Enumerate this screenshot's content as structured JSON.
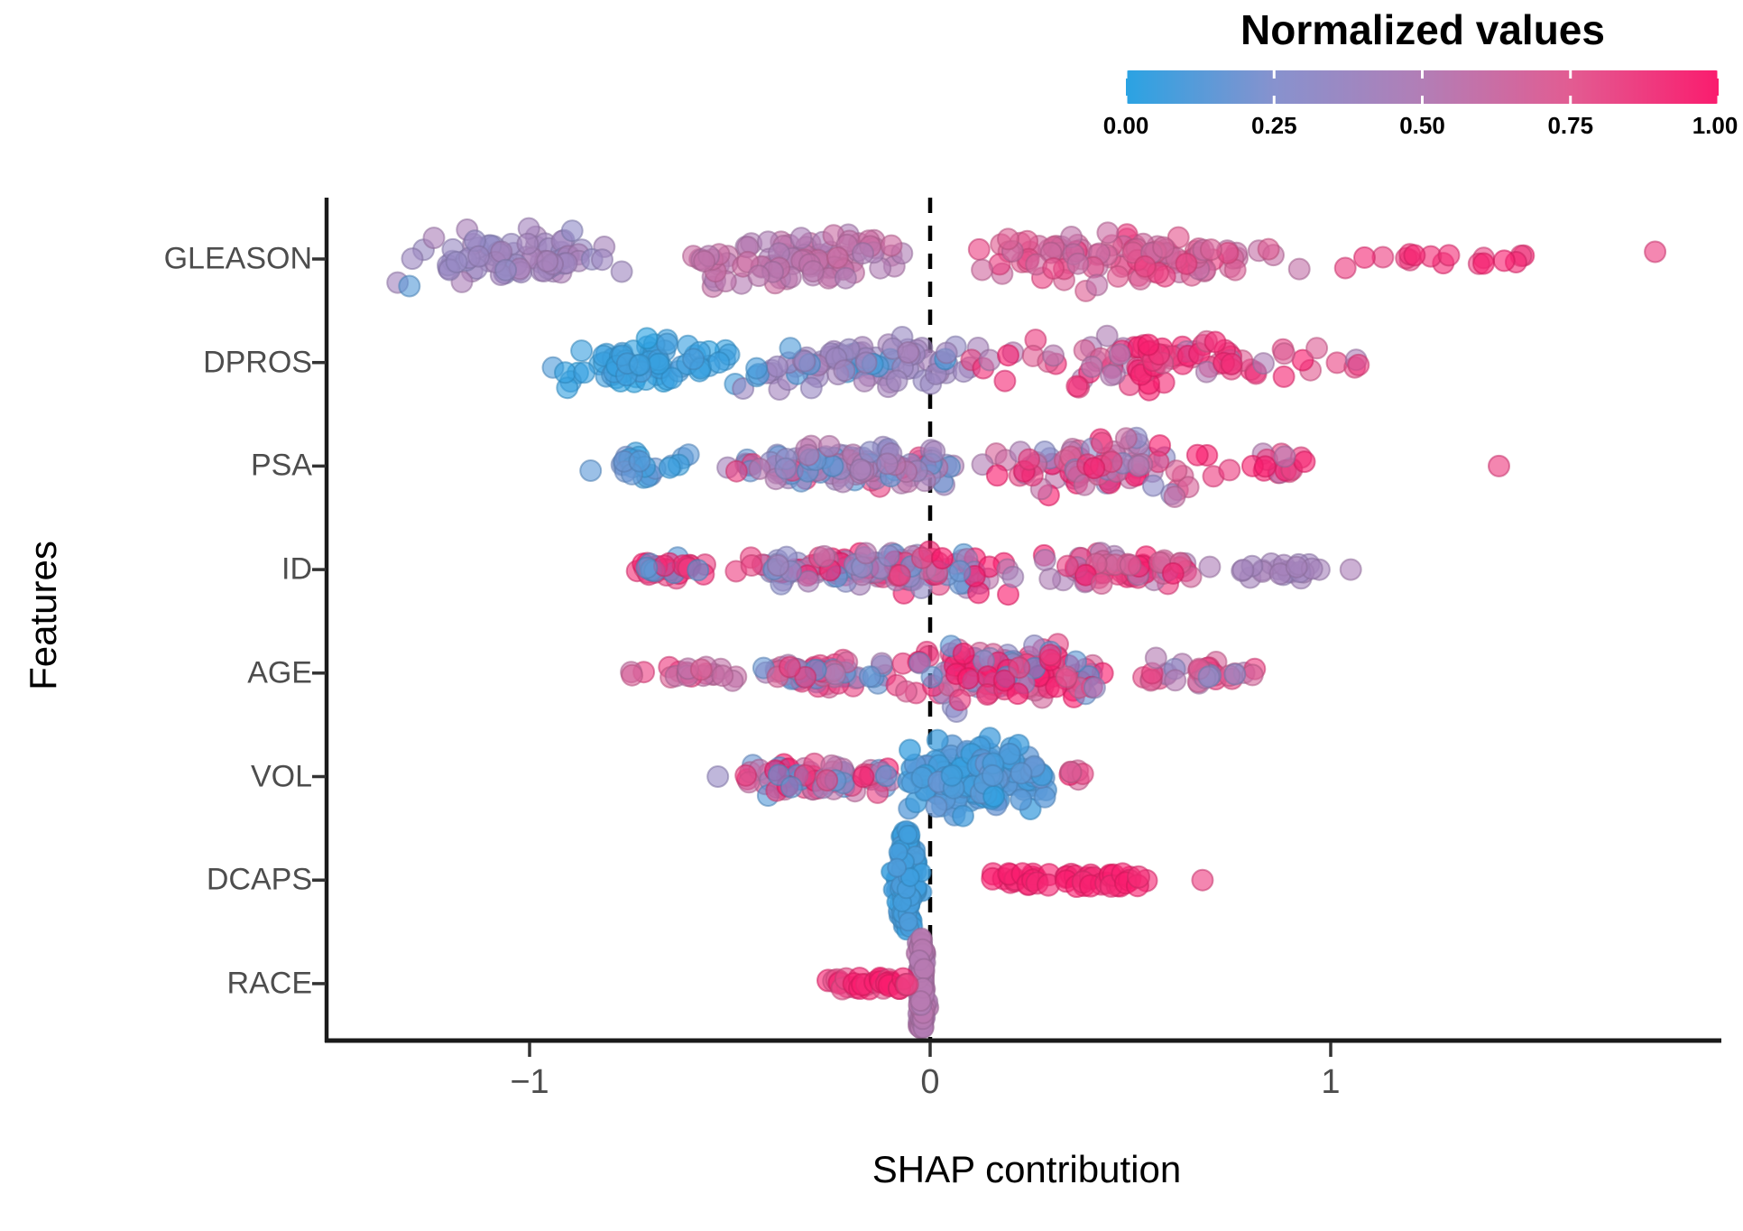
{
  "chart_data": {
    "type": "scatter",
    "variant": "shap-beeswarm",
    "xlabel": "SHAP contribution",
    "ylabel": "Features",
    "x_ticks": [
      -1,
      0,
      1
    ],
    "x_range": [
      -1.51,
      1.97
    ],
    "zero_reference_line": 0,
    "grid": "off",
    "features": [
      "GLEASON",
      "DPROS",
      "PSA",
      "ID",
      "AGE",
      "VOL",
      "DCAPS",
      "RACE"
    ],
    "legend": {
      "title": "Normalized values",
      "ticks": [
        "0.00",
        "0.25",
        "0.50",
        "0.75",
        "1.00"
      ],
      "tick_values": [
        0,
        0.25,
        0.5,
        0.75,
        1
      ],
      "position": "top-right"
    },
    "color_scale": {
      "stops": [
        {
          "t": 0.0,
          "color": "#2AA3E3"
        },
        {
          "t": 0.25,
          "color": "#8792CE"
        },
        {
          "t": 0.5,
          "color": "#B27EB6"
        },
        {
          "t": 0.75,
          "color": "#E25C92"
        },
        {
          "t": 1.0,
          "color": "#FA1C6E"
        }
      ]
    },
    "distributions": [
      {
        "feature": "GLEASON",
        "clusters": [
          {
            "x0": -1.36,
            "x1": -0.78,
            "n": 78,
            "v": [
              0.33,
              0.4,
              0.45,
              0.36
            ],
            "hh": 48,
            "shape": "blob"
          },
          {
            "x0": -1.31,
            "x1": -1.29,
            "n": 1,
            "v": [
              0.12
            ],
            "hh": 5,
            "shape": "lone",
            "yoff": 30
          },
          {
            "x0": -0.78,
            "x1": -0.76,
            "n": 1,
            "v": [
              0.42
            ],
            "hh": 5,
            "shape": "lone",
            "yoff": 14
          },
          {
            "x0": -0.64,
            "x1": -0.02,
            "n": 95,
            "v": [
              0.5,
              0.55,
              0.58,
              0.62
            ],
            "hh": 52,
            "shape": "blob"
          },
          {
            "x0": 0.08,
            "x1": 0.95,
            "n": 115,
            "v": [
              0.6,
              0.65,
              0.7,
              0.75,
              0.85
            ],
            "hh": 55,
            "shape": "blob"
          },
          {
            "x0": 0.95,
            "x1": 1.6,
            "n": 17,
            "v": [
              0.85,
              0.95,
              1.0
            ],
            "hh": 26,
            "shape": "blob"
          },
          {
            "x0": 1.8,
            "x1": 1.82,
            "n": 1,
            "v": [
              0.85
            ],
            "hh": 5,
            "shape": "lone",
            "yoff": -8
          }
        ]
      },
      {
        "feature": "DPROS",
        "clusters": [
          {
            "x0": -0.98,
            "x1": -0.45,
            "n": 72,
            "v": [
              0.02,
              0.05,
              0.08
            ],
            "hh": 46,
            "shape": "blob"
          },
          {
            "x0": -0.52,
            "x1": 0.2,
            "n": 92,
            "v": [
              0.35,
              0.4,
              0.45,
              0.38,
              0.08
            ],
            "hh": 52,
            "shape": "blob"
          },
          {
            "x0": 0.05,
            "x1": 1.0,
            "n": 92,
            "v": [
              0.72,
              0.85,
              1.0,
              0.95,
              0.5
            ],
            "hh": 48,
            "shape": "blob"
          },
          {
            "x0": 1.0,
            "x1": 1.1,
            "n": 4,
            "v": [
              0.5,
              0.85
            ],
            "hh": 18,
            "shape": "blob"
          }
        ]
      },
      {
        "feature": "PSA",
        "clusters": [
          {
            "x0": -0.88,
            "x1": -0.55,
            "n": 26,
            "v": [
              0.05,
              0.15,
              0.2
            ],
            "hh": 28,
            "shape": "blob"
          },
          {
            "x0": -0.55,
            "x1": 0.1,
            "n": 135,
            "v": [
              0.15,
              0.3,
              0.4,
              0.5,
              0.55,
              0.85
            ],
            "hh": 56,
            "shape": "fanR"
          },
          {
            "x0": 0.1,
            "x1": 0.75,
            "n": 92,
            "v": [
              0.5,
              0.6,
              0.85,
              1.0,
              0.3,
              0.7
            ],
            "hh": 50,
            "shape": "blob"
          },
          {
            "x0": 0.75,
            "x1": 1.0,
            "n": 15,
            "v": [
              0.85,
              1.0,
              0.55
            ],
            "hh": 24,
            "shape": "blob"
          },
          {
            "x0": 1.41,
            "x1": 1.43,
            "n": 1,
            "v": [
              0.85
            ],
            "hh": 5,
            "shape": "lone",
            "yoff": 0
          }
        ]
      },
      {
        "feature": "ID",
        "clusters": [
          {
            "x0": -0.8,
            "x1": -0.5,
            "n": 32,
            "v": [
              0.85,
              1.0,
              0.95,
              0.12
            ],
            "hh": 30,
            "shape": "fanR"
          },
          {
            "x0": -0.5,
            "x1": 0.25,
            "n": 155,
            "v": [
              0.3,
              0.15,
              0.85,
              0.45,
              0.55,
              1.0
            ],
            "hh": 58,
            "shape": "fanR"
          },
          {
            "x0": 0.25,
            "x1": 0.72,
            "n": 70,
            "v": [
              0.85,
              0.7,
              0.5,
              1.0
            ],
            "hh": 46,
            "shape": "taperR"
          },
          {
            "x0": 0.76,
            "x1": 1.0,
            "n": 22,
            "v": [
              0.4,
              0.45,
              0.42
            ],
            "hh": 22,
            "shape": "blob"
          },
          {
            "x0": 1.04,
            "x1": 1.06,
            "n": 1,
            "v": [
              0.5
            ],
            "hh": 5,
            "shape": "lone",
            "yoff": 0
          }
        ]
      },
      {
        "feature": "AGE",
        "clusters": [
          {
            "x0": -0.8,
            "x1": -0.45,
            "n": 22,
            "v": [
              0.6,
              0.7,
              0.85
            ],
            "hh": 16,
            "shape": "blob"
          },
          {
            "x0": -0.45,
            "x1": -0.1,
            "n": 62,
            "v": [
              0.7,
              0.85,
              0.5,
              0.15
            ],
            "hh": 42,
            "shape": "fanR"
          },
          {
            "x0": -0.1,
            "x1": 0.45,
            "n": 155,
            "v": [
              0.85,
              1.0,
              0.7,
              0.3,
              0.15,
              0.9
            ],
            "hh": 60,
            "shape": "blob"
          },
          {
            "x0": 0.45,
            "x1": 0.85,
            "n": 35,
            "v": [
              0.5,
              0.3,
              0.7,
              0.85
            ],
            "hh": 36,
            "shape": "taperR"
          }
        ]
      },
      {
        "feature": "VOL",
        "clusters": [
          {
            "x0": -0.54,
            "x1": -0.52,
            "n": 1,
            "v": [
              0.35
            ],
            "hh": 5,
            "shape": "lone",
            "yoff": 0
          },
          {
            "x0": -0.48,
            "x1": -0.08,
            "n": 78,
            "v": [
              0.85,
              1.0,
              0.15,
              0.4,
              0.6
            ],
            "hh": 34,
            "shape": "blob"
          },
          {
            "x0": -0.09,
            "x1": 0.33,
            "n": 210,
            "v": [
              0.05,
              0.08,
              0.12,
              0.15
            ],
            "hh": 62,
            "shape": "blob",
            "op": 0.75
          },
          {
            "x0": 0.3,
            "x1": 0.4,
            "n": 6,
            "v": [
              0.85,
              0.7,
              1.0
            ],
            "hh": 16,
            "shape": "blob"
          }
        ]
      },
      {
        "feature": "DCAPS",
        "clusters": [
          {
            "x0": -0.13,
            "x1": 0.01,
            "n": 150,
            "v": [
              0.07
            ],
            "hh": 56,
            "shape": "violin",
            "op": 0.85,
            "r": 10
          },
          {
            "x0": 0.13,
            "x1": 0.57,
            "n": 46,
            "v": [
              1.0,
              1.0,
              0.95
            ],
            "hh": 7,
            "shape": "line",
            "r": 12
          },
          {
            "x0": 0.67,
            "x1": 0.69,
            "n": 1,
            "v": [
              0.85
            ],
            "hh": 5,
            "shape": "lone",
            "yoff": 0
          }
        ]
      },
      {
        "feature": "RACE",
        "clusters": [
          {
            "x0": -0.05,
            "x1": 0.01,
            "n": 130,
            "v": [
              0.52
            ],
            "hh": 52,
            "shape": "capsule",
            "op": 0.85,
            "r": 11
          },
          {
            "x0": -0.26,
            "x1": -0.04,
            "n": 30,
            "v": [
              1.0,
              1.0,
              0.8
            ],
            "hh": 6,
            "shape": "line",
            "r": 12
          }
        ]
      }
    ]
  }
}
